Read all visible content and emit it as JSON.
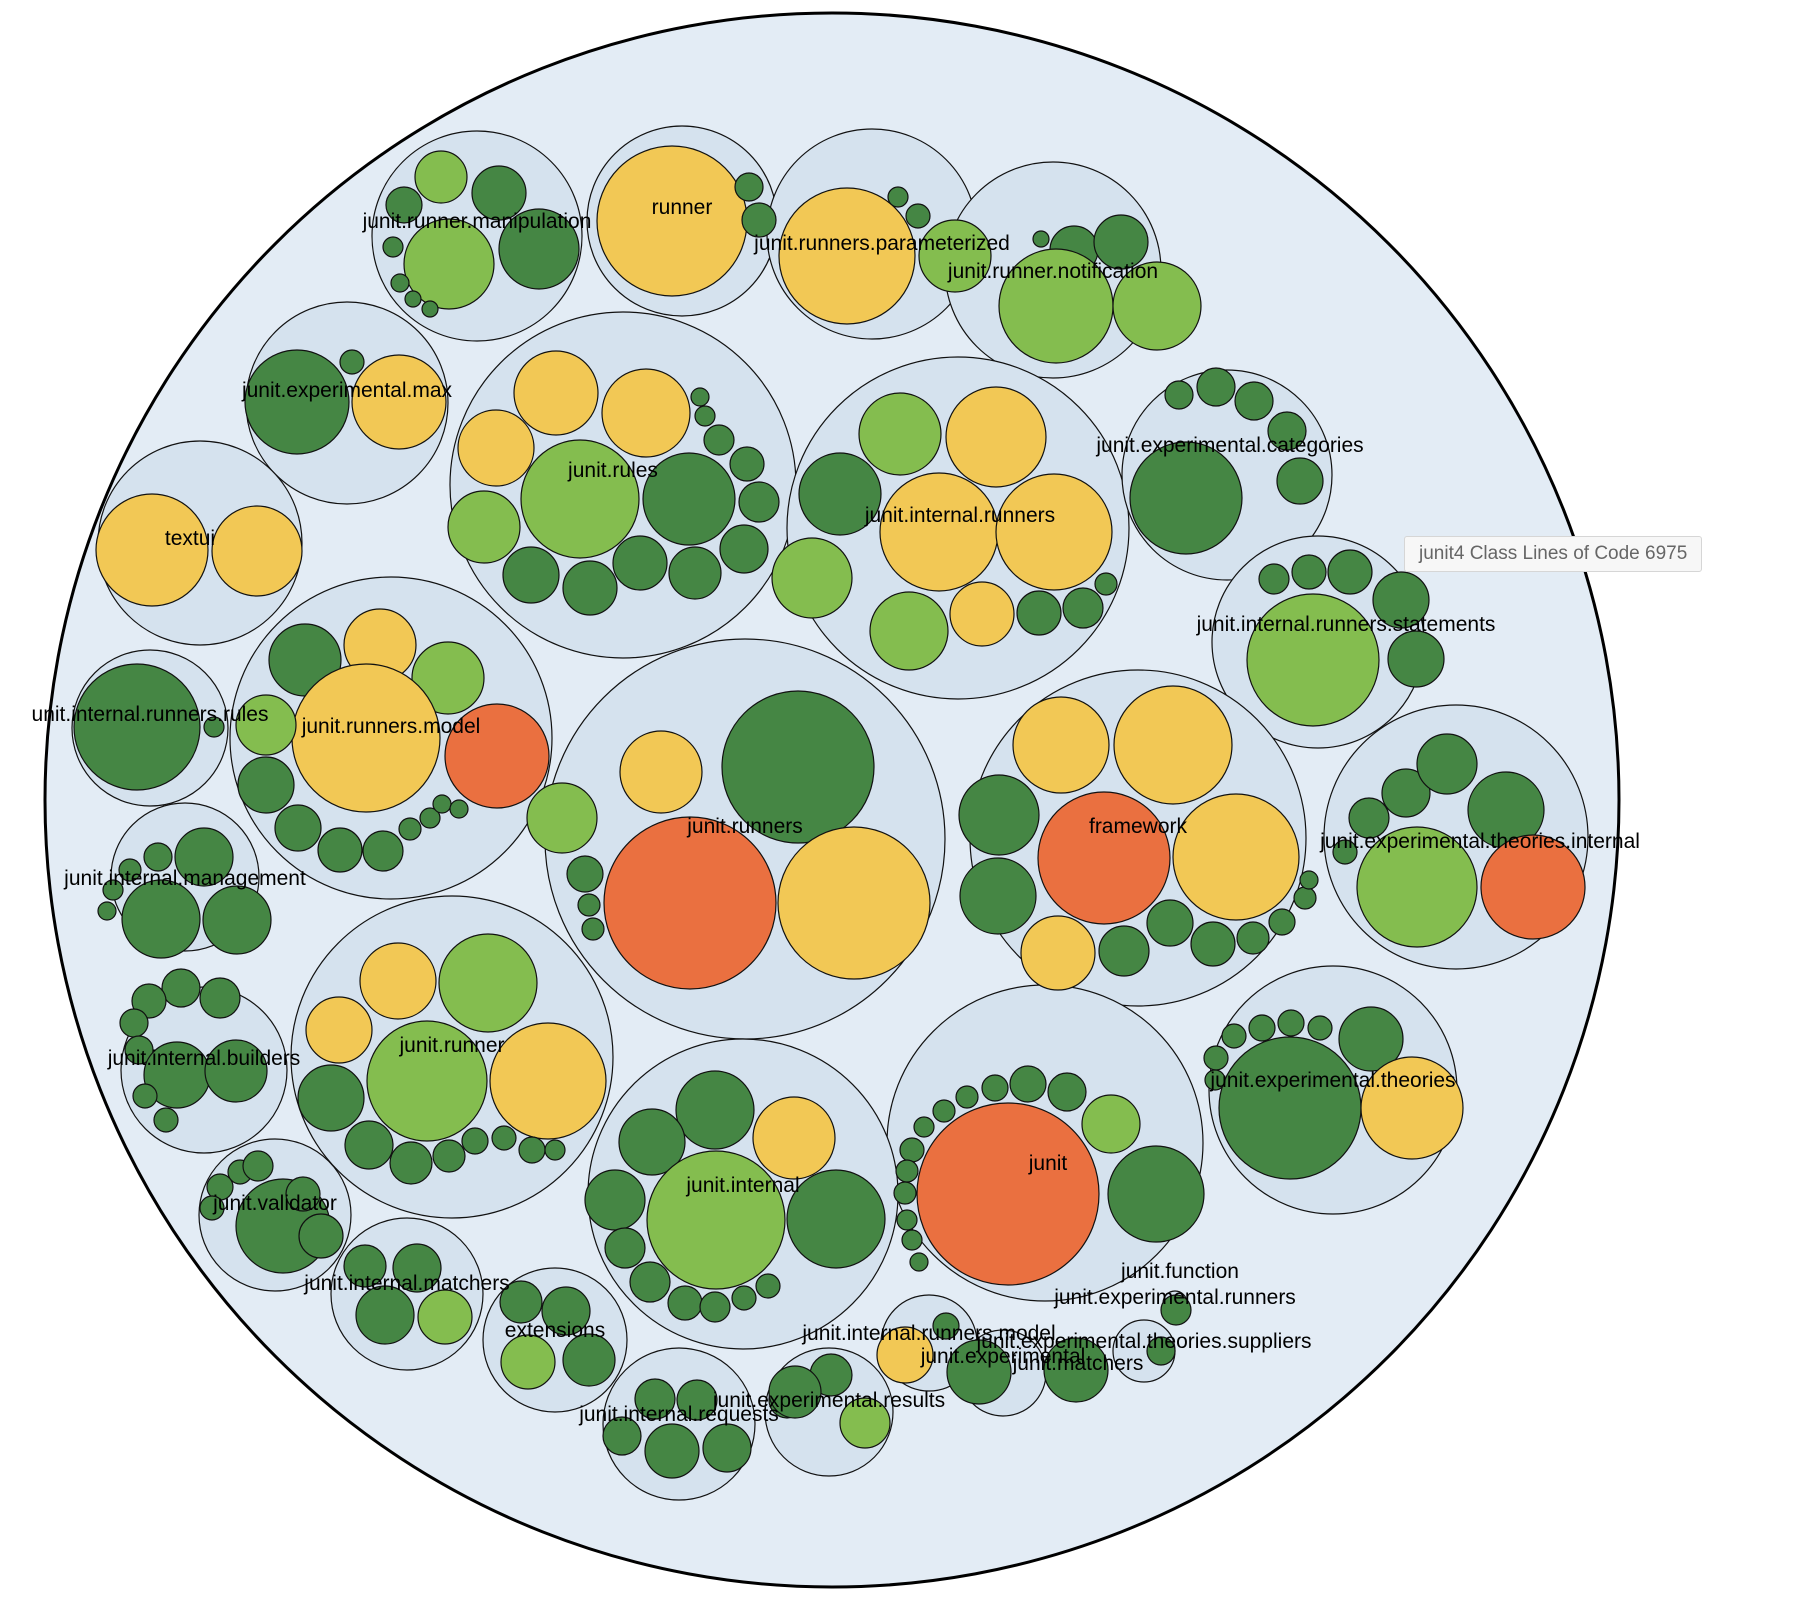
{
  "tooltip": {
    "project": "junit4",
    "scope": "Class",
    "metric": "Lines of Code",
    "value": "6975"
  },
  "colors": {
    "root_fill": "#e3ecf5",
    "package_fill": "#d5e2ee",
    "stroke": "#111111",
    "dark_green": "#458644",
    "light_green": "#84bd4f",
    "yellow": "#f2c855",
    "orange": "#ea7040"
  },
  "packages": [
    {
      "label": "junit.runner.manipulation"
    },
    {
      "label": "runner"
    },
    {
      "label": "junit.runners.parameterized"
    },
    {
      "label": "junit.runner.notification"
    },
    {
      "label": "junit.experimental.max"
    },
    {
      "label": "junit.rules"
    },
    {
      "label": "junit.internal.runners"
    },
    {
      "label": "junit.experimental.categories"
    },
    {
      "label": "textui"
    },
    {
      "label": "junit.internal.runners.statements"
    },
    {
      "label": "unit.internal.runners.rules"
    },
    {
      "label": "junit.runners.model"
    },
    {
      "label": "junit.runners"
    },
    {
      "label": "framework"
    },
    {
      "label": "junit.experimental.theories.internal"
    },
    {
      "label": "junit.internal.management"
    },
    {
      "label": "junit.internal.builders"
    },
    {
      "label": "junit.runner"
    },
    {
      "label": "junit.experimental.theories"
    },
    {
      "label": "junit"
    },
    {
      "label": "junit.internal"
    },
    {
      "label": "junit.validator"
    },
    {
      "label": "junit.internal.matchers"
    },
    {
      "label": "extensions"
    },
    {
      "label": "junit.function"
    },
    {
      "label": "junit.experimental.runners"
    },
    {
      "label": "junit.internal.runners.model"
    },
    {
      "label": "junit.experimental.theories.suppliers"
    },
    {
      "label": "junit.experimental"
    },
    {
      "label": "junit.matchers"
    },
    {
      "label": "junit.experimental.results"
    },
    {
      "label": "junit.internal.requests"
    }
  ]
}
